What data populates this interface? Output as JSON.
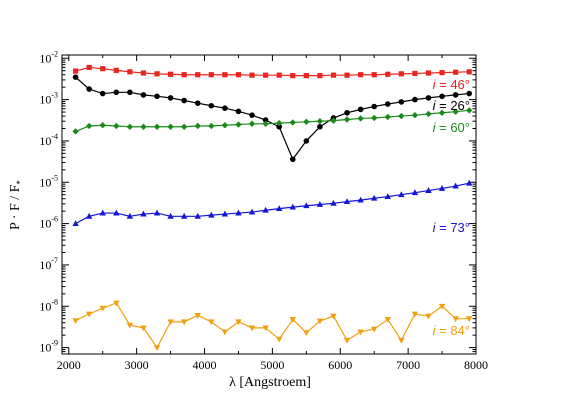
{
  "chart_data": {
    "type": "line",
    "title": "",
    "xlabel": "λ [Angstroem]",
    "ylabel": "P · F / F",
    "ylabel_subscript": "*",
    "xlim": [
      1900,
      8000
    ],
    "ylim": [
      7e-10,
      0.012
    ],
    "yscale": "log",
    "x_ticks": [
      2000,
      3000,
      4000,
      5000,
      6000,
      7000,
      8000
    ],
    "x_tick_labels": [
      "2000",
      "3000",
      "4000",
      "5000",
      "6000",
      "7000",
      "8000"
    ],
    "y_ticks": [
      -9,
      -8,
      -7,
      -6,
      -5,
      -4,
      -3,
      -2
    ],
    "y_tick_labels": [
      {
        "base": "10",
        "exp": "-9"
      },
      {
        "base": "10",
        "exp": "-8"
      },
      {
        "base": "10",
        "exp": "-7"
      },
      {
        "base": "10",
        "exp": "-6"
      },
      {
        "base": "10",
        "exp": "-5"
      },
      {
        "base": "10",
        "exp": "-4"
      },
      {
        "base": "10",
        "exp": "-3"
      },
      {
        "base": "10",
        "exp": "-2"
      }
    ],
    "grid": false,
    "legend": "none",
    "series": [
      {
        "label_var": "i",
        "label_value": "= 46°",
        "color": "#e8261f",
        "marker": "square",
        "x": [
          2100,
          2300,
          2500,
          2700,
          2900,
          3100,
          3300,
          3500,
          3700,
          3900,
          4100,
          4300,
          4500,
          4700,
          4900,
          5100,
          5300,
          5500,
          5700,
          5900,
          6100,
          6300,
          6500,
          6700,
          6900,
          7100,
          7300,
          7500,
          7700,
          7900
        ],
        "y": [
          0.0049,
          0.006,
          0.0056,
          0.0051,
          0.0047,
          0.0044,
          0.0042,
          0.0041,
          0.004,
          0.004,
          0.004,
          0.004,
          0.004,
          0.0039,
          0.0039,
          0.0039,
          0.0038,
          0.0038,
          0.0038,
          0.0039,
          0.0039,
          0.004,
          0.004,
          0.0041,
          0.0042,
          0.0043,
          0.0044,
          0.0045,
          0.0046,
          0.0047
        ]
      },
      {
        "label_var": "i",
        "label_value": "= 26°",
        "color": "#000000",
        "marker": "circle",
        "x": [
          2100,
          2300,
          2500,
          2700,
          2900,
          3100,
          3300,
          3500,
          3700,
          3900,
          4100,
          4300,
          4500,
          4700,
          4900,
          5100,
          5300,
          5500,
          5700,
          5900,
          6100,
          6300,
          6500,
          6700,
          6900,
          7100,
          7300,
          7500,
          7700,
          7900
        ],
        "y": [
          0.0035,
          0.0018,
          0.0014,
          0.0015,
          0.0015,
          0.0013,
          0.0012,
          0.0011,
          0.00095,
          0.00082,
          0.00071,
          0.00062,
          0.00052,
          0.00042,
          0.00032,
          0.00022,
          3.6e-05,
          0.0001,
          0.00022,
          0.00036,
          0.00048,
          0.00058,
          0.00068,
          0.00078,
          0.00088,
          0.001,
          0.0011,
          0.0012,
          0.0013,
          0.0014
        ]
      },
      {
        "label_var": "i",
        "label_value": "= 60°",
        "color": "#1a8a1a",
        "marker": "diamond",
        "x": [
          2100,
          2300,
          2500,
          2700,
          2900,
          3100,
          3300,
          3500,
          3700,
          3900,
          4100,
          4300,
          4500,
          4700,
          4900,
          5100,
          5300,
          5500,
          5700,
          5900,
          6100,
          6300,
          6500,
          6700,
          6900,
          7100,
          7300,
          7500,
          7700,
          7900
        ],
        "y": [
          0.00017,
          0.00023,
          0.00024,
          0.00023,
          0.00022,
          0.00022,
          0.00022,
          0.00022,
          0.00022,
          0.00023,
          0.00023,
          0.00024,
          0.00025,
          0.00026,
          0.00026,
          0.00027,
          0.00028,
          0.00029,
          0.0003,
          0.00031,
          0.00033,
          0.00035,
          0.00036,
          0.00038,
          0.0004,
          0.00042,
          0.00045,
          0.00048,
          0.00051,
          0.00055
        ]
      },
      {
        "label_var": "i",
        "label_value": "= 73°",
        "color": "#1515d8",
        "marker": "triangle-up",
        "x": [
          2100,
          2300,
          2500,
          2700,
          2900,
          3100,
          3300,
          3500,
          3700,
          3900,
          4100,
          4300,
          4500,
          4700,
          4900,
          5100,
          5300,
          5500,
          5700,
          5900,
          6100,
          6300,
          6500,
          6700,
          6900,
          7100,
          7300,
          7500,
          7700,
          7900
        ],
        "y": [
          1e-06,
          1.5e-06,
          1.8e-06,
          1.8e-06,
          1.5e-06,
          1.7e-06,
          1.8e-06,
          1.5e-06,
          1.5e-06,
          1.5e-06,
          1.6e-06,
          1.7e-06,
          1.8e-06,
          1.9e-06,
          2.1e-06,
          2.3e-06,
          2.5e-06,
          2.7e-06,
          2.9e-06,
          3.1e-06,
          3.4e-06,
          3.7e-06,
          4.1e-06,
          4.5e-06,
          5e-06,
          5.6e-06,
          6.3e-06,
          7.1e-06,
          8.1e-06,
          9.5e-06
        ]
      },
      {
        "label_var": "i",
        "label_value": "= 84°",
        "color": "#f0a010",
        "marker": "triangle-down",
        "x": [
          2100,
          2300,
          2500,
          2700,
          2900,
          3100,
          3300,
          3500,
          3700,
          3900,
          4100,
          4300,
          4500,
          4700,
          4900,
          5100,
          5300,
          5500,
          5700,
          5900,
          6100,
          6300,
          6500,
          6700,
          6900,
          7100,
          7300,
          7500,
          7700,
          7900
        ],
        "y": [
          4.5e-09,
          6.5e-09,
          9e-09,
          1.2e-08,
          3.5e-09,
          3e-09,
          1e-09,
          4.2e-09,
          4.2e-09,
          6e-09,
          4.2e-09,
          2.4e-09,
          4.2e-09,
          3e-09,
          3e-09,
          1.6e-09,
          4.8e-09,
          2.3e-09,
          4.4e-09,
          5.8e-09,
          1.5e-09,
          2.4e-09,
          2.8e-09,
          4.8e-09,
          1.5e-09,
          6.5e-09,
          5.8e-09,
          1e-08,
          5e-09,
          5e-09
        ]
      }
    ]
  }
}
